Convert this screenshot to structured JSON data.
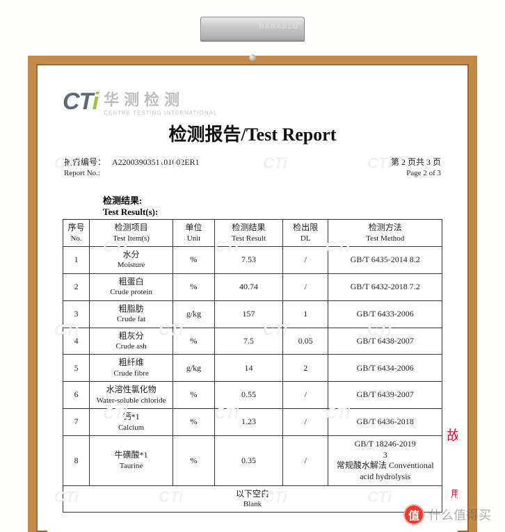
{
  "logo": {
    "mark_l": "CT",
    "mark_r": "i",
    "name_cn": "华测检测",
    "name_en": "CENTRE  TESTING  INTERNATIONAL"
  },
  "title": "检测报告/Test Report",
  "meta": {
    "report_no_label_cn": "报告编号：",
    "report_no_label_en": "Report No.:",
    "report_no": "A2200390351101002ER1",
    "page_cn": "第 2 页共 3 页",
    "page_en": "Page 2 of 3"
  },
  "section": {
    "label_cn": "检测结果:",
    "label_en": "Test Result(s):"
  },
  "table": {
    "headers": {
      "no": {
        "cn": "序号",
        "en": "No."
      },
      "item": {
        "cn": "检测项目",
        "en": "Test Item(s)"
      },
      "unit": {
        "cn": "单位",
        "en": "Unit"
      },
      "result": {
        "cn": "检测结果",
        "en": "Test Result"
      },
      "dl": {
        "cn": "检出限",
        "en": "DL"
      },
      "method": {
        "cn": "检测方法",
        "en": "Test Method"
      }
    },
    "rows": [
      {
        "no": "1",
        "item_cn": "水分",
        "item_en": "Moisture",
        "unit": "%",
        "result": "7.53",
        "dl": "/",
        "method": "GB/T 6435-2014 8.2"
      },
      {
        "no": "2",
        "item_cn": "粗蛋白",
        "item_en": "Crude protein",
        "unit": "%",
        "result": "40.74",
        "dl": "/",
        "method": "GB/T 6432-2018 7.2"
      },
      {
        "no": "3",
        "item_cn": "粗脂肪",
        "item_en": "Crude fat",
        "unit": "g/kg",
        "result": "157",
        "dl": "1",
        "method": "GB/T 6433-2006"
      },
      {
        "no": "4",
        "item_cn": "粗灰分",
        "item_en": "Crude ash",
        "unit": "%",
        "result": "7.5",
        "dl": "0.05",
        "method": "GB/T 6438-2007"
      },
      {
        "no": "5",
        "item_cn": "粗纤维",
        "item_en": "Crude fibre",
        "unit": "g/kg",
        "result": "14",
        "dl": "2",
        "method": "GB/T 6434-2006"
      },
      {
        "no": "6",
        "item_cn": "水溶性氯化物",
        "item_en": "Water-soluble chloride",
        "unit": "%",
        "result": "0.55",
        "dl": "/",
        "method": "GB/T 6439-2007"
      },
      {
        "no": "7",
        "item_cn": "钙*1",
        "item_en": "Calcium",
        "unit": "%",
        "result": "1.23",
        "dl": "/",
        "method": "GB/T 6436-2018"
      },
      {
        "no": "8",
        "item_cn": "牛磺酸*1",
        "item_en": "Taurine",
        "unit": "%",
        "result": "0.35",
        "dl": "/",
        "method": "GB/T 18246-2019 3 常规酸水解法 Conventional acid hydrolysis"
      }
    ],
    "blank_cn": "以下空白",
    "blank_en": "Blank",
    "col_widths": [
      "7%",
      "22%",
      "11%",
      "18%",
      "12%",
      "30%"
    ]
  },
  "stamps": {
    "s1": "故",
    "s2": "用"
  },
  "footer_badge": {
    "coin": "值",
    "text": "什么值得买"
  },
  "colors": {
    "frame": "#c48a4a",
    "accent_green": "#9cc23c",
    "logo_grey": "#5c6a78",
    "stamp_red": "#e13"
  }
}
